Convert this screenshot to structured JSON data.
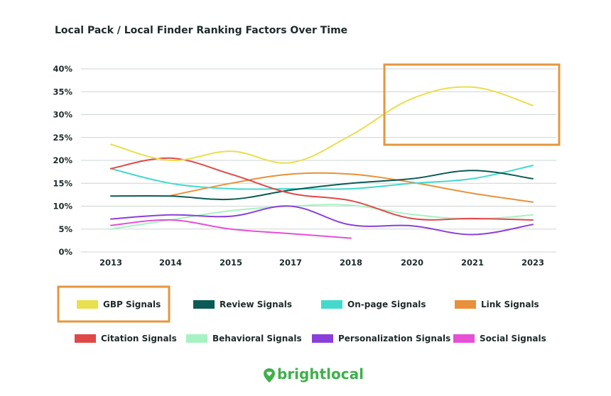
{
  "chart_data": {
    "type": "line",
    "title": "Local Pack / Local Finder Ranking Factors Over Time",
    "xlabel": "",
    "ylabel": "",
    "categories": [
      "2013",
      "2014",
      "2015",
      "2017",
      "2018",
      "2020",
      "2021",
      "2023"
    ],
    "yticks": [
      "0%",
      "5%",
      "10%",
      "15%",
      "20%",
      "25%",
      "30%",
      "35%",
      "40%"
    ],
    "ylim": [
      0,
      40
    ],
    "grid": true,
    "legend_position": "bottom",
    "series": [
      {
        "name": "GBP Signals",
        "color": "#e8e04d",
        "values": [
          23.5,
          20,
          22,
          19.5,
          25.5,
          33.5,
          36,
          32
        ]
      },
      {
        "name": "Review Signals",
        "color": "#0b5a55",
        "values": [
          12.2,
          12.2,
          11.5,
          13.5,
          15,
          16,
          17.8,
          16
        ]
      },
      {
        "name": "On-page Signals",
        "color": "#43d9cd",
        "values": [
          18.2,
          15,
          13.8,
          13.8,
          13.8,
          15,
          16,
          18.9
        ]
      },
      {
        "name": "Link Signals",
        "color": "#e8913a",
        "values": [
          null,
          12.3,
          15,
          17,
          17,
          15.2,
          12.8,
          10.9
        ]
      },
      {
        "name": "Citation Signals",
        "color": "#e04848",
        "values": [
          18.2,
          20.5,
          17,
          12.8,
          11.2,
          7.3,
          7.3,
          7
        ]
      },
      {
        "name": "Behavioral Signals",
        "color": "#a6f2c2",
        "values": [
          5,
          7,
          9,
          10,
          10.2,
          8.2,
          7.2,
          8.1
        ]
      },
      {
        "name": "Personalization Signals",
        "color": "#8b3fd9",
        "values": [
          7.2,
          8.1,
          7.8,
          10,
          5.9,
          5.7,
          3.8,
          6
        ]
      },
      {
        "name": "Social Signals",
        "color": "#e64fd6",
        "values": [
          5.8,
          7,
          5,
          4,
          3,
          null,
          null,
          null
        ]
      }
    ],
    "highlighted_series": "GBP Signals",
    "highlighted_range": [
      "2020",
      "2023"
    ]
  },
  "brand": {
    "name": "brightlocal",
    "color": "#3fb04a",
    "icon": "map-pin-heart-icon"
  },
  "colors": {
    "highlight_box": "#e4973e",
    "grid": "#cfd4d4",
    "text": "#1f2a2a"
  }
}
